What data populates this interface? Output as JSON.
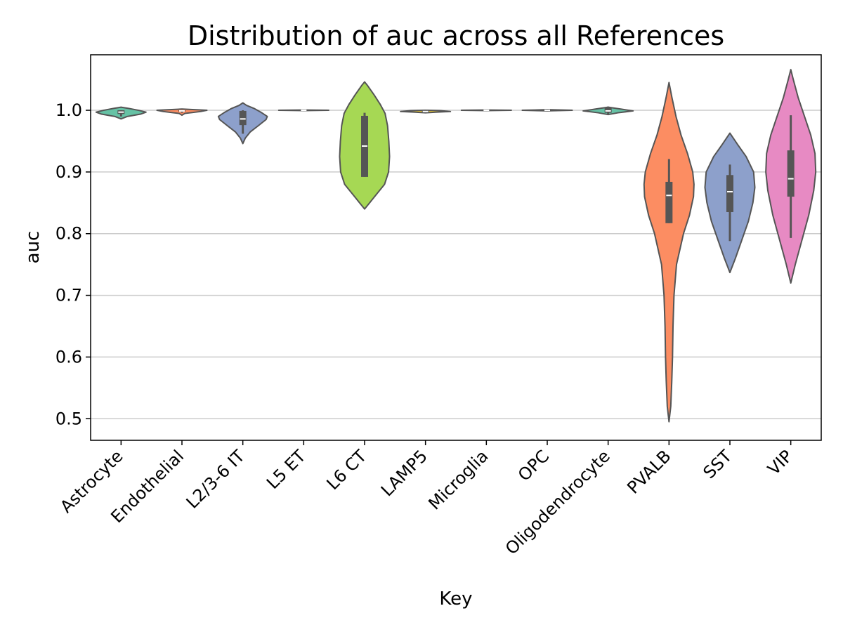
{
  "chart_data": {
    "type": "violin",
    "title": "Distribution of auc across all References",
    "xlabel": "Key",
    "ylabel": "auc",
    "ylim": [
      0.465,
      1.09
    ],
    "yticks": [
      0.5,
      0.6,
      0.7,
      0.8,
      0.9,
      1.0
    ],
    "ytick_labels": [
      "0.5",
      "0.6",
      "0.7",
      "0.8",
      "0.9",
      "1.0"
    ],
    "grid": "horizontal",
    "categories": [
      "Astrocyte",
      "Endothelial",
      "L2/3-6 IT",
      "L5 ET",
      "L6 CT",
      "LAMP5",
      "Microglia",
      "OPC",
      "Oligodendrocyte",
      "PVALB",
      "SST",
      "VIP"
    ],
    "series": [
      {
        "category": "Astrocyte",
        "color": "#66c2a5",
        "median": 0.997,
        "q1": 0.994,
        "q3": 1.0,
        "whisker_low": 0.99,
        "whisker_high": 1.0,
        "violin": [
          [
            0.986,
            0.0
          ],
          [
            0.99,
            0.25
          ],
          [
            0.994,
            0.8
          ],
          [
            0.997,
            1.0
          ],
          [
            1.0,
            0.7
          ],
          [
            1.003,
            0.3
          ],
          [
            1.005,
            0.0
          ]
        ]
      },
      {
        "category": "Endothelial",
        "color": "#fc8d62",
        "median": 0.999,
        "q1": 0.998,
        "q3": 1.0,
        "whisker_low": 0.996,
        "whisker_high": 1.0,
        "violin": [
          [
            0.992,
            0.0
          ],
          [
            0.995,
            0.12
          ],
          [
            0.998,
            0.75
          ],
          [
            1.0,
            1.0
          ],
          [
            1.002,
            0.0
          ]
        ]
      },
      {
        "category": "L2/3-6 IT",
        "color": "#8da0cb",
        "median": 0.986,
        "q1": 0.976,
        "q3": 0.999,
        "whisker_low": 0.962,
        "whisker_high": 1.0,
        "violin": [
          [
            0.946,
            0.0
          ],
          [
            0.955,
            0.1
          ],
          [
            0.965,
            0.3
          ],
          [
            0.975,
            0.62
          ],
          [
            0.985,
            0.93
          ],
          [
            0.99,
            0.98
          ],
          [
            0.997,
            0.72
          ],
          [
            1.003,
            0.45
          ],
          [
            1.008,
            0.15
          ],
          [
            1.012,
            0.0
          ]
        ]
      },
      {
        "category": "L5 ET",
        "color": "#e78ac3",
        "median": 1.0,
        "q1": 1.0,
        "q3": 1.0,
        "whisker_low": 1.0,
        "whisker_high": 1.0,
        "violin": [
          [
            0.9995,
            0.0
          ],
          [
            1.0,
            1.0
          ],
          [
            1.0005,
            0.0
          ]
        ]
      },
      {
        "category": "L6 CT",
        "color": "#a6d854",
        "median": 0.942,
        "q1": 0.892,
        "q3": 0.991,
        "whisker_low": 0.892,
        "whisker_high": 0.996,
        "violin": [
          [
            0.84,
            0.0
          ],
          [
            0.85,
            0.2
          ],
          [
            0.865,
            0.5
          ],
          [
            0.88,
            0.8
          ],
          [
            0.9,
            0.96
          ],
          [
            0.925,
            1.0
          ],
          [
            0.95,
            0.97
          ],
          [
            0.975,
            0.92
          ],
          [
            0.995,
            0.82
          ],
          [
            1.01,
            0.62
          ],
          [
            1.025,
            0.38
          ],
          [
            1.04,
            0.12
          ],
          [
            1.046,
            0.0
          ]
        ]
      },
      {
        "category": "LAMP5",
        "color": "#ffd92f",
        "median": 0.998,
        "q1": 0.997,
        "q3": 0.999,
        "whisker_low": 0.996,
        "whisker_high": 1.0,
        "violin": [
          [
            0.996,
            0.0
          ],
          [
            0.997,
            0.4
          ],
          [
            0.998,
            1.0
          ],
          [
            0.9995,
            0.6
          ],
          [
            1.0,
            0.0
          ]
        ]
      },
      {
        "category": "Microglia",
        "color": "#e5c494",
        "median": 1.0,
        "q1": 1.0,
        "q3": 1.0,
        "whisker_low": 1.0,
        "whisker_high": 1.0,
        "violin": [
          [
            0.9995,
            0.0
          ],
          [
            1.0,
            1.0
          ],
          [
            1.0005,
            0.0
          ]
        ]
      },
      {
        "category": "OPC",
        "color": "#b3b3b3",
        "median": 1.0,
        "q1": 1.0,
        "q3": 1.0,
        "whisker_low": 1.0,
        "whisker_high": 1.0,
        "violin": [
          [
            0.999,
            0.0
          ],
          [
            1.0,
            1.0
          ],
          [
            1.001,
            0.0
          ]
        ]
      },
      {
        "category": "Oligodendrocyte",
        "color": "#66c2a5",
        "median": 0.999,
        "q1": 0.996,
        "q3": 1.004,
        "whisker_low": 0.994,
        "whisker_high": 1.006,
        "violin": [
          [
            0.993,
            0.0
          ],
          [
            0.996,
            0.4
          ],
          [
            0.999,
            1.0
          ],
          [
            1.002,
            0.5
          ],
          [
            1.005,
            0.0
          ]
        ]
      },
      {
        "category": "PVALB",
        "color": "#fc8d62",
        "median": 0.862,
        "q1": 0.817,
        "q3": 0.884,
        "whisker_low": 0.817,
        "whisker_high": 0.921,
        "violin": [
          [
            0.495,
            0.0
          ],
          [
            0.52,
            0.07
          ],
          [
            0.56,
            0.11
          ],
          [
            0.6,
            0.14
          ],
          [
            0.65,
            0.16
          ],
          [
            0.7,
            0.2
          ],
          [
            0.75,
            0.3
          ],
          [
            0.8,
            0.58
          ],
          [
            0.83,
            0.82
          ],
          [
            0.86,
            0.98
          ],
          [
            0.88,
            1.0
          ],
          [
            0.9,
            0.95
          ],
          [
            0.93,
            0.74
          ],
          [
            0.96,
            0.48
          ],
          [
            0.99,
            0.28
          ],
          [
            1.02,
            0.12
          ],
          [
            1.045,
            0.0
          ]
        ]
      },
      {
        "category": "SST",
        "color": "#8da0cb",
        "median": 0.868,
        "q1": 0.835,
        "q3": 0.895,
        "whisker_low": 0.788,
        "whisker_high": 0.912,
        "violin": [
          [
            0.737,
            0.0
          ],
          [
            0.76,
            0.22
          ],
          [
            0.79,
            0.48
          ],
          [
            0.82,
            0.74
          ],
          [
            0.85,
            0.92
          ],
          [
            0.875,
            1.0
          ],
          [
            0.9,
            0.95
          ],
          [
            0.925,
            0.65
          ],
          [
            0.945,
            0.3
          ],
          [
            0.963,
            0.0
          ]
        ]
      },
      {
        "category": "VIP",
        "color": "#e78ac3",
        "median": 0.889,
        "q1": 0.86,
        "q3": 0.935,
        "whisker_low": 0.793,
        "whisker_high": 0.992,
        "violin": [
          [
            0.72,
            0.0
          ],
          [
            0.75,
            0.18
          ],
          [
            0.79,
            0.45
          ],
          [
            0.83,
            0.72
          ],
          [
            0.87,
            0.92
          ],
          [
            0.9,
            1.0
          ],
          [
            0.93,
            0.97
          ],
          [
            0.96,
            0.8
          ],
          [
            0.99,
            0.55
          ],
          [
            1.02,
            0.3
          ],
          [
            1.05,
            0.1
          ],
          [
            1.066,
            0.0
          ]
        ]
      }
    ]
  }
}
